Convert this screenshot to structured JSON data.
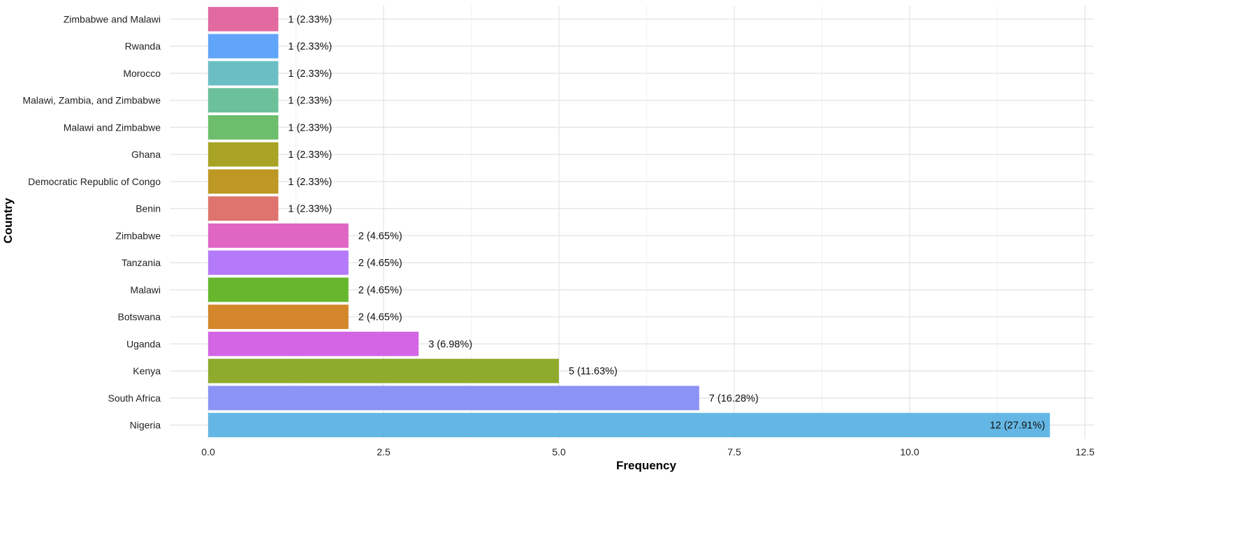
{
  "chart_data": {
    "type": "bar",
    "orientation": "horizontal",
    "xlabel": "Frequency",
    "ylabel": "Country",
    "xlim": [
      0,
      12.6
    ],
    "x_ticks": [
      "0.0",
      "2.5",
      "5.0",
      "7.5",
      "10.0",
      "12.5"
    ],
    "grid": true,
    "legend": "none",
    "bars": [
      {
        "category": "Zimbabwe and Malawi",
        "value": 1,
        "label": "1 (2.33%)",
        "color": "#e26aa0"
      },
      {
        "category": "Rwanda",
        "value": 1,
        "label": "1 (2.33%)",
        "color": "#61a5fb"
      },
      {
        "category": "Morocco",
        "value": 1,
        "label": "1 (2.33%)",
        "color": "#6bbfc4"
      },
      {
        "category": "Malawi, Zambia, and Zimbabwe",
        "value": 1,
        "label": "1 (2.33%)",
        "color": "#6cc19a"
      },
      {
        "category": "Malawi and Zimbabwe",
        "value": 1,
        "label": "1 (2.33%)",
        "color": "#6cbe6c"
      },
      {
        "category": "Ghana",
        "value": 1,
        "label": "1 (2.33%)",
        "color": "#a8a324"
      },
      {
        "category": "Democratic Republic of Congo",
        "value": 1,
        "label": "1 (2.33%)",
        "color": "#be9824"
      },
      {
        "category": "Benin",
        "value": 1,
        "label": "1 (2.33%)",
        "color": "#df736e"
      },
      {
        "category": "Zimbabwe",
        "value": 2,
        "label": "2 (4.65%)",
        "color": "#e066c4"
      },
      {
        "category": "Tanzania",
        "value": 2,
        "label": "2 (4.65%)",
        "color": "#b47afa"
      },
      {
        "category": "Malawi",
        "value": 2,
        "label": "2 (4.65%)",
        "color": "#66b72e"
      },
      {
        "category": "Botswana",
        "value": 2,
        "label": "2 (4.65%)",
        "color": "#d4862a"
      },
      {
        "category": "Uganda",
        "value": 3,
        "label": "3 (6.98%)",
        "color": "#d466e6"
      },
      {
        "category": "Kenya",
        "value": 5,
        "label": "5 (11.63%)",
        "color": "#8fab2d"
      },
      {
        "category": "South Africa",
        "value": 7,
        "label": "7 (16.28%)",
        "color": "#8c93f6"
      },
      {
        "category": "Nigeria",
        "value": 12,
        "label": "12 (27.91%)",
        "color": "#64b7e4"
      }
    ]
  }
}
